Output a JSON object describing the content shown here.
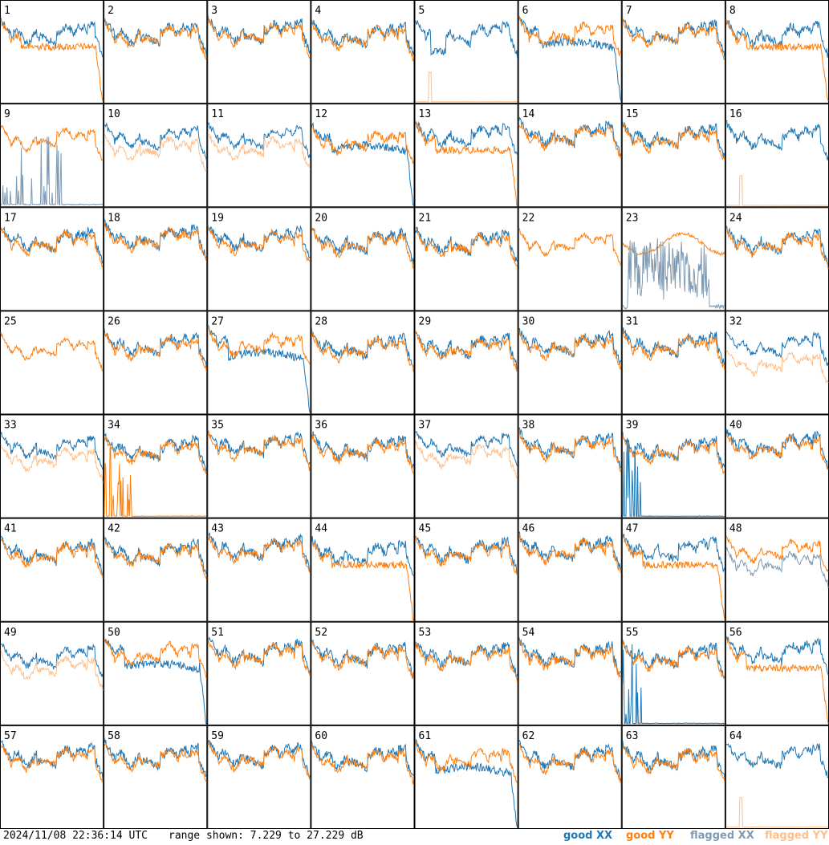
{
  "chart_data": {
    "type": "line",
    "tiles": [
      "1",
      "2",
      "3",
      "4",
      "5",
      "6",
      "7",
      "8",
      "9",
      "10",
      "11",
      "12",
      "13",
      "14",
      "15",
      "16",
      "17",
      "18",
      "19",
      "20",
      "21",
      "22",
      "23",
      "24",
      "25",
      "26",
      "27",
      "28",
      "29",
      "30",
      "31",
      "32",
      "33",
      "34",
      "35",
      "36",
      "37",
      "38",
      "39",
      "40",
      "41",
      "42",
      "43",
      "44",
      "45",
      "46",
      "47",
      "48",
      "49",
      "50",
      "51",
      "52",
      "53",
      "54",
      "55",
      "56",
      "57",
      "58",
      "59",
      "60",
      "61",
      "62",
      "63",
      "64"
    ],
    "series": [
      {
        "name": "good XX",
        "color": "#1f77b4"
      },
      {
        "name": "good YY",
        "color": "#ff7f0e"
      },
      {
        "name": "flagged XX",
        "color": "#7f9bb3"
      },
      {
        "name": "flagged YY",
        "color": "#ffbf8a"
      }
    ],
    "range_db": [
      7.229,
      27.229
    ]
  },
  "footer": {
    "timestamp": "2024/11/08 22:36:14 UTC",
    "range_text": "range shown: 7.229 to 27.229 dB"
  },
  "legend": {
    "good_xx_a": "good ",
    "good_xx_b": "XX",
    "good_yy": "good YY",
    "flagged_xx_a": "flagged ",
    "flagged_xx_b": "XX",
    "flagged_yy": "flagged YY"
  }
}
